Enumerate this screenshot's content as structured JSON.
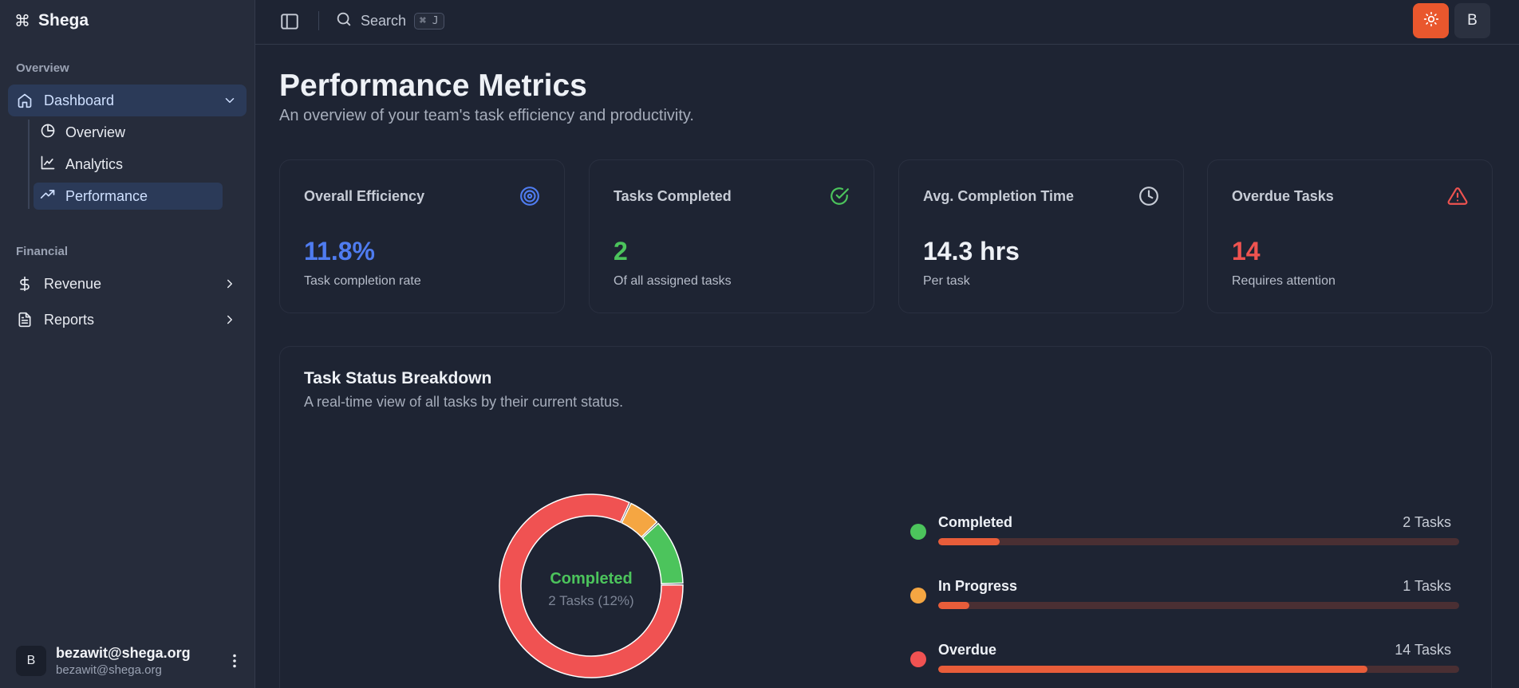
{
  "brand": {
    "name": "Shega",
    "glyph": "⌘"
  },
  "sidebar": {
    "section_overview": "Overview",
    "dashboard_label": "Dashboard",
    "sub_items": [
      {
        "label": "Overview",
        "icon": "pie-chart-icon",
        "active": false
      },
      {
        "label": "Analytics",
        "icon": "line-chart-icon",
        "active": false
      },
      {
        "label": "Performance",
        "icon": "trending-up-icon",
        "active": true
      }
    ],
    "section_financial": "Financial",
    "revenue_label": "Revenue",
    "reports_label": "Reports"
  },
  "user": {
    "initial": "B",
    "name": "bezawit@shega.org",
    "email": "bezawit@shega.org"
  },
  "topbar": {
    "search_label": "Search",
    "shortcut": "⌘ J",
    "avatar_initial": "B"
  },
  "page": {
    "title": "Performance Metrics",
    "subtitle": "An overview of your team's task efficiency and productivity."
  },
  "cards": [
    {
      "title": "Overall Efficiency",
      "value": "11.8%",
      "desc": "Task completion rate",
      "icon": "target-icon",
      "color": "#4f7cf0"
    },
    {
      "title": "Tasks Completed",
      "value": "2",
      "desc": "Of all assigned tasks",
      "icon": "check-circle-icon",
      "color": "#4cc45c"
    },
    {
      "title": "Avg. Completion Time",
      "value": "14.3 hrs",
      "desc": "Per task",
      "icon": "clock-icon",
      "color": "#eef1f6"
    },
    {
      "title": "Overdue Tasks",
      "value": "14",
      "desc": "Requires attention",
      "icon": "alert-triangle-icon",
      "color": "#ef5350"
    }
  ],
  "breakdown": {
    "title": "Task Status Breakdown",
    "subtitle": "A real-time view of all tasks by their current status.",
    "center_title": "Completed",
    "center_sub": "2 Tasks (12%)",
    "items": [
      {
        "label": "Completed",
        "count": "2 Tasks",
        "value": 2,
        "color": "#4cc45c"
      },
      {
        "label": "In Progress",
        "count": "1 Tasks",
        "value": 1,
        "color": "#f5a642"
      },
      {
        "label": "Overdue",
        "count": "14 Tasks",
        "value": 14,
        "color": "#f05252"
      }
    ],
    "bar_fill_fractions": [
      0.118,
      0.059,
      0.824
    ]
  },
  "colors": {
    "accent": "#e9572d",
    "bar_fill": "#e85d3a",
    "bar_track": "#4a2f33"
  }
}
